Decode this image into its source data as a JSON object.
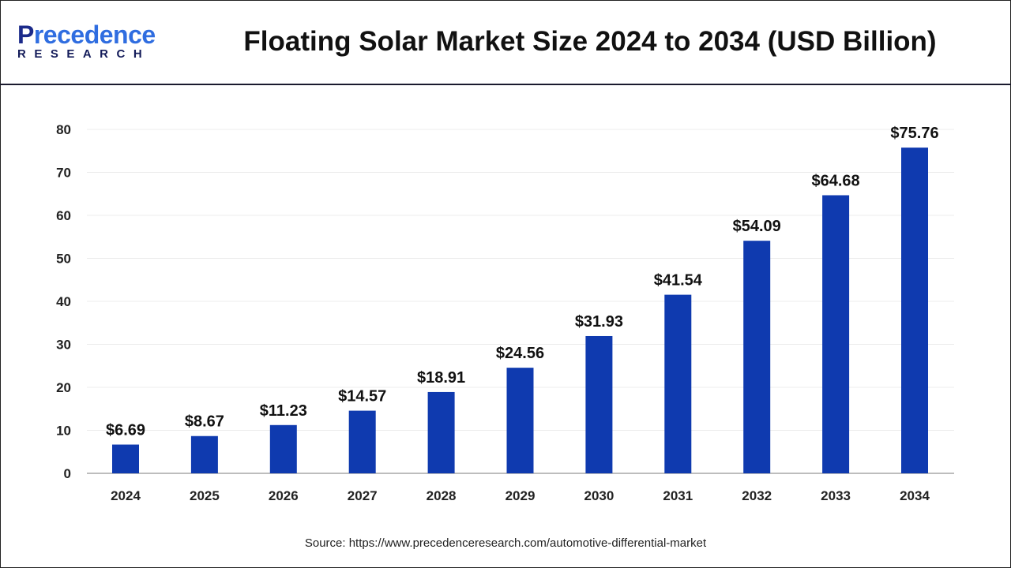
{
  "logo": {
    "line1_a": "P",
    "line1_b": "recedence",
    "line2": "RESEARCH"
  },
  "title": "Floating Solar Market Size 2024 to 2034 (USD Billion)",
  "source": "Source: https://www.precedenceresearch.com/automotive-differential-market",
  "chart_data": {
    "type": "bar",
    "title": "Floating Solar Market Size 2024 to 2034 (USD Billion)",
    "categories": [
      "2024",
      "2025",
      "2026",
      "2027",
      "2028",
      "2029",
      "2030",
      "2031",
      "2032",
      "2033",
      "2034"
    ],
    "values": [
      6.69,
      8.67,
      11.23,
      14.57,
      18.91,
      24.56,
      31.93,
      41.54,
      54.09,
      64.68,
      75.76
    ],
    "data_labels": [
      "$6.69",
      "$8.67",
      "$11.23",
      "$14.57",
      "$18.91",
      "$24.56",
      "$31.93",
      "$41.54",
      "$54.09",
      "$64.68",
      "$75.76"
    ],
    "yticks": [
      "0",
      "10",
      "20",
      "30",
      "40",
      "50",
      "60",
      "70",
      "80"
    ],
    "ylim": [
      0,
      80
    ],
    "grid": true,
    "bar_color": "#0f3aaf",
    "xlabel": "",
    "ylabel": ""
  }
}
